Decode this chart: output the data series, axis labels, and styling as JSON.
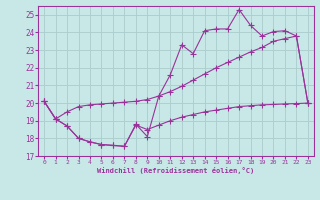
{
  "background_color": "#c8e8e8",
  "grid_color": "#aacccc",
  "line_color": "#993399",
  "xlabel": "Windchill (Refroidissement éolien,°C)",
  "xlim": [
    -0.5,
    23.5
  ],
  "ylim": [
    17,
    25.5
  ],
  "yticks": [
    17,
    18,
    19,
    20,
    21,
    22,
    23,
    24,
    25
  ],
  "xticks": [
    0,
    1,
    2,
    3,
    4,
    5,
    6,
    7,
    8,
    9,
    10,
    11,
    12,
    13,
    14,
    15,
    16,
    17,
    18,
    19,
    20,
    21,
    22,
    23
  ],
  "line1_x": [
    0,
    1,
    2,
    3,
    4,
    5,
    6,
    7,
    8,
    9,
    10,
    11,
    12,
    13,
    14,
    15,
    16,
    17,
    18,
    19,
    20,
    21,
    22,
    23
  ],
  "line1_y": [
    20.1,
    19.1,
    18.7,
    18.0,
    17.8,
    17.65,
    17.6,
    17.55,
    18.8,
    18.1,
    20.4,
    21.6,
    23.3,
    22.8,
    24.1,
    24.2,
    24.2,
    25.3,
    24.4,
    23.8,
    24.05,
    24.1,
    23.8,
    20.0
  ],
  "line2_x": [
    0,
    1,
    2,
    3,
    4,
    5,
    6,
    7,
    8,
    9,
    10,
    11,
    12,
    13,
    14,
    15,
    16,
    17,
    18,
    19,
    20,
    21,
    22,
    23
  ],
  "line2_y": [
    20.1,
    19.1,
    19.5,
    19.8,
    19.9,
    19.95,
    20.0,
    20.05,
    20.1,
    20.2,
    20.4,
    20.65,
    20.95,
    21.3,
    21.65,
    22.0,
    22.3,
    22.6,
    22.9,
    23.15,
    23.5,
    23.65,
    23.8,
    20.0
  ],
  "line3_x": [
    0,
    1,
    2,
    3,
    4,
    5,
    6,
    7,
    8,
    9,
    10,
    11,
    12,
    13,
    14,
    15,
    16,
    17,
    18,
    19,
    20,
    21,
    22,
    23
  ],
  "line3_y": [
    20.1,
    19.1,
    18.7,
    18.0,
    17.8,
    17.65,
    17.6,
    17.55,
    18.75,
    18.5,
    18.75,
    19.0,
    19.2,
    19.35,
    19.5,
    19.6,
    19.7,
    19.8,
    19.85,
    19.9,
    19.92,
    19.95,
    19.97,
    20.0
  ]
}
